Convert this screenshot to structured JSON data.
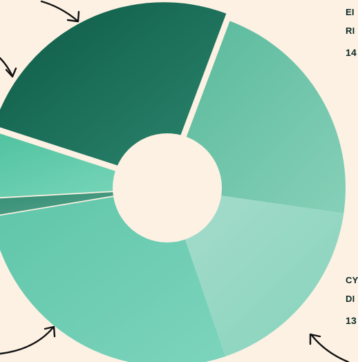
{
  "chart_data": {
    "type": "pie",
    "title": "",
    "variant": "exploded donut",
    "slices": [
      {
        "label": "",
        "value": 118,
        "color": "#0d5a45",
        "color_light": "#2d8770",
        "offset": 12
      },
      {
        "label": "",
        "value": 99,
        "color": "#57b89a",
        "color_light": "#86d0b8",
        "offset": 0
      },
      {
        "label": "",
        "value": 80,
        "color": "#a6dccb",
        "color_light": "#86d3bc",
        "offset": 0
      },
      {
        "label": "",
        "value": 127,
        "color": "#5ec5a8",
        "color_light": "#7dd4bd",
        "offset": 0
      },
      {
        "label": "",
        "value": 8,
        "color": "#2f8b6f",
        "color_light": "#5aa690",
        "offset": 32
      },
      {
        "label": "",
        "value": 27,
        "color": "#4fc29e",
        "color_light": "#7ed8bd",
        "offset": 0
      }
    ],
    "annotations": [
      {
        "line1": "EI",
        "line2": "RI",
        "value": "14"
      },
      {
        "line1": "CY",
        "line2": "DI",
        "value": "13"
      }
    ],
    "legend": "none",
    "grid": false
  }
}
